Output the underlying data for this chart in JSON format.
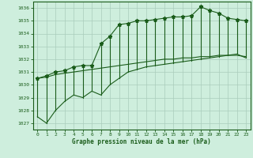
{
  "title": "Graphe pression niveau de la mer (hPa)",
  "bg_color": "#ceeedd",
  "grid_color": "#aaccbb",
  "line_color": "#1a5c1a",
  "marker_color": "#1a5c1a",
  "hours": [
    0,
    1,
    2,
    3,
    4,
    5,
    6,
    7,
    8,
    9,
    10,
    11,
    12,
    13,
    14,
    15,
    16,
    17,
    18,
    19,
    20,
    21,
    22,
    23
  ],
  "pressure_max": [
    1030.5,
    1030.7,
    1031.0,
    1031.1,
    1031.4,
    1031.5,
    1031.5,
    1033.2,
    1033.8,
    1034.7,
    1034.8,
    1035.0,
    1035.0,
    1035.1,
    1035.2,
    1035.3,
    1035.3,
    1035.4,
    1036.1,
    1035.8,
    1035.6,
    1035.2,
    1035.1,
    1035.0
  ],
  "pressure_mean": [
    1030.5,
    1030.6,
    1030.8,
    1030.9,
    1031.0,
    1031.1,
    1031.2,
    1031.3,
    1031.4,
    1031.5,
    1031.6,
    1031.7,
    1031.8,
    1031.9,
    1032.0,
    1032.0,
    1032.1,
    1032.1,
    1032.2,
    1032.2,
    1032.3,
    1032.3,
    1032.3,
    1032.2
  ],
  "pressure_min": [
    1027.5,
    1027.0,
    1028.0,
    1028.7,
    1029.2,
    1029.0,
    1029.5,
    1029.2,
    1030.0,
    1030.5,
    1031.0,
    1031.2,
    1031.4,
    1031.5,
    1031.6,
    1031.7,
    1031.8,
    1031.9,
    1032.0,
    1032.1,
    1032.2,
    1032.3,
    1032.4,
    1032.1
  ],
  "ylim": [
    1026.5,
    1036.5
  ],
  "yticks": [
    1027,
    1028,
    1029,
    1030,
    1031,
    1032,
    1033,
    1034,
    1035,
    1036
  ],
  "xlim": [
    -0.5,
    23.5
  ]
}
